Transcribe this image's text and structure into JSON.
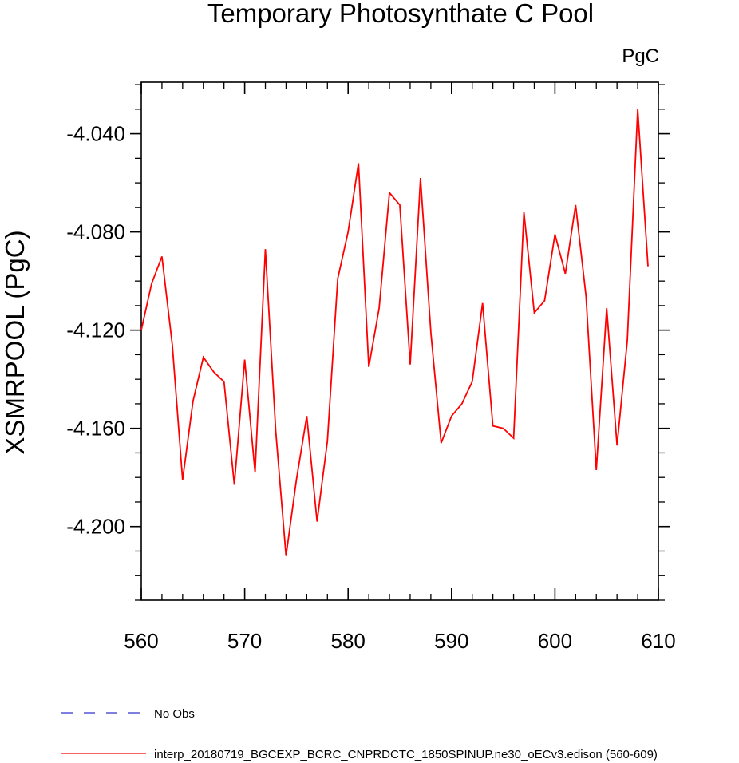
{
  "chart_data": {
    "type": "line",
    "title": "Temporary Photosynthate C Pool",
    "units_label": "PgC",
    "ylabel": "XSMRPOOL  (PgC)",
    "xlabel": "",
    "xlim": [
      560,
      610
    ],
    "ylim": [
      -4.23,
      -4.019
    ],
    "x_ticks": [
      560,
      570,
      580,
      590,
      600,
      610
    ],
    "y_ticks": [
      -4.04,
      -4.08,
      -4.12,
      -4.16,
      -4.2
    ],
    "y_tick_labels": [
      "-4.040",
      "-4.080",
      "-4.120",
      "-4.160",
      "-4.200"
    ],
    "grid": false,
    "series": [
      {
        "name": "interp_20180719_BGCEXP_BCRC_CNPRDCTC_1850SPINUP.ne30_oECv3.edison (560-609)",
        "color": "#ff0000",
        "style": "solid",
        "x": [
          560,
          561,
          562,
          563,
          564,
          565,
          566,
          567,
          568,
          569,
          570,
          571,
          572,
          573,
          574,
          575,
          576,
          577,
          578,
          579,
          580,
          581,
          582,
          583,
          584,
          585,
          586,
          587,
          588,
          589,
          590,
          591,
          592,
          593,
          594,
          595,
          596,
          597,
          598,
          599,
          600,
          601,
          602,
          603,
          604,
          605,
          606,
          607,
          608,
          609
        ],
        "y": [
          -4.12,
          -4.101,
          -4.09,
          -4.126,
          -4.181,
          -4.149,
          -4.131,
          -4.137,
          -4.141,
          -4.183,
          -4.132,
          -4.178,
          -4.087,
          -4.161,
          -4.212,
          -4.181,
          -4.155,
          -4.198,
          -4.165,
          -4.099,
          -4.08,
          -4.052,
          -4.135,
          -4.111,
          -4.064,
          -4.069,
          -4.134,
          -4.058,
          -4.121,
          -4.166,
          -4.155,
          -4.15,
          -4.141,
          -4.109,
          -4.159,
          -4.16,
          -4.164,
          -4.072,
          -4.113,
          -4.108,
          -4.081,
          -4.097,
          -4.069,
          -4.106,
          -4.177,
          -4.111,
          -4.167,
          -4.124,
          -4.03,
          -4.094
        ]
      }
    ],
    "legend": [
      {
        "label": "No Obs",
        "color": "#3333cc",
        "style": "dashed"
      },
      {
        "label": "interp_20180719_BGCEXP_BCRC_CNPRDCTC_1850SPINUP.ne30_oECv3.edison (560-609)",
        "color": "#ff0000",
        "style": "solid"
      }
    ],
    "legend_position": "bottom-left"
  }
}
